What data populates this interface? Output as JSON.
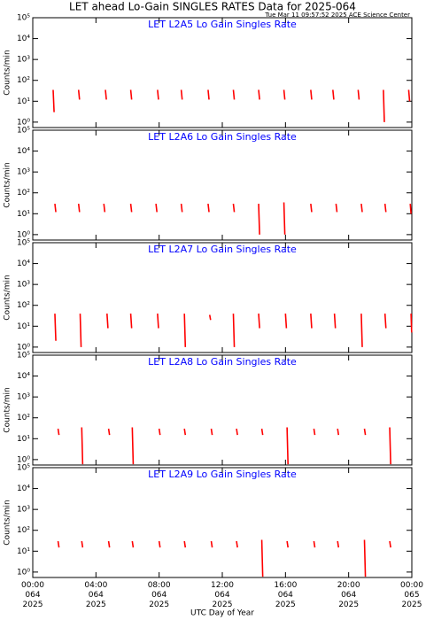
{
  "page": {
    "title": "LET ahead Lo-Gain SINGLES RATES Data for 2025-064",
    "timestamp": "Tue Mar 11 09:57:52 2025 ACE Science Center",
    "x_label": "UTC Day of Year"
  },
  "chart_data": [
    {
      "type": "line",
      "title": "LET L2A5 Lo Gain Singles Rate",
      "ylabel": "Counts/min",
      "log_scale": true,
      "color": "#ff0000",
      "xlim": [
        0,
        24
      ],
      "xticks": [
        0,
        4,
        8,
        12,
        16,
        20,
        24
      ],
      "ylim": [
        0.55,
        100000
      ],
      "yticks": [
        {
          "value": 1,
          "label": "10⁰"
        },
        {
          "value": 10,
          "label": "10¹"
        },
        {
          "value": 100,
          "label": "10²"
        },
        {
          "value": 1000,
          "label": "10³"
        },
        {
          "value": 10000,
          "label": "10⁴"
        },
        {
          "value": 100000,
          "label": "10⁵"
        }
      ],
      "x": [
        1.29,
        1.35,
        1.35,
        2.9,
        2.96,
        2.96,
        4.6,
        4.66,
        4.66,
        6.2,
        6.26,
        6.26,
        7.9,
        7.96,
        7.96,
        9.4,
        9.46,
        9.46,
        11.1,
        11.16,
        11.16,
        12.7,
        12.76,
        12.76,
        14.3,
        14.36,
        14.36,
        15.9,
        15.96,
        15.96,
        17.6,
        17.66,
        17.66,
        19.0,
        19.06,
        19.06,
        20.6,
        20.66,
        20.66,
        22.2,
        22.26,
        22.26,
        23.8,
        23.86,
        23.86
      ],
      "values": [
        35,
        3,
        null,
        35,
        12,
        null,
        35,
        12,
        null,
        35,
        12,
        null,
        35,
        12,
        null,
        35,
        12,
        null,
        35,
        12,
        null,
        35,
        12,
        null,
        35,
        12,
        null,
        35,
        12,
        null,
        35,
        12,
        null,
        35,
        12,
        null,
        35,
        12,
        null,
        35,
        1,
        null,
        35,
        10,
        null
      ]
    },
    {
      "type": "line",
      "title": "LET L2A6 Lo Gain Singles Rate",
      "ylabel": "Counts/min",
      "log_scale": true,
      "color": "#ff0000",
      "xlim": [
        0,
        24
      ],
      "xticks": [
        0,
        4,
        8,
        12,
        16,
        20,
        24
      ],
      "ylim": [
        0.55,
        100000
      ],
      "yticks": [
        {
          "value": 1,
          "label": "10⁰"
        },
        {
          "value": 10,
          "label": "10¹"
        },
        {
          "value": 100,
          "label": "10²"
        },
        {
          "value": 1000,
          "label": "10³"
        },
        {
          "value": 10000,
          "label": "10⁴"
        },
        {
          "value": 100000,
          "label": "10⁵"
        }
      ],
      "x": [
        1.4,
        1.46,
        1.46,
        2.9,
        2.96,
        2.96,
        4.5,
        4.56,
        4.56,
        6.2,
        6.26,
        6.26,
        7.8,
        7.86,
        7.86,
        9.4,
        9.46,
        9.46,
        11.1,
        11.16,
        11.16,
        12.7,
        12.76,
        12.76,
        14.3,
        14.36,
        14.36,
        15.9,
        15.96,
        15.96,
        17.6,
        17.66,
        17.66,
        19.2,
        19.26,
        19.26,
        20.8,
        20.86,
        20.86,
        22.3,
        22.36,
        22.36,
        23.9,
        23.95,
        23.95
      ],
      "values": [
        30,
        12,
        null,
        30,
        12,
        null,
        30,
        12,
        null,
        30,
        12,
        null,
        30,
        12,
        null,
        30,
        12,
        null,
        30,
        12,
        null,
        30,
        12,
        null,
        30,
        1,
        null,
        35,
        1,
        null,
        30,
        12,
        null,
        30,
        12,
        null,
        30,
        12,
        null,
        30,
        12,
        null,
        30,
        10,
        null
      ]
    },
    {
      "type": "line",
      "title": "LET L2A7 Lo Gain Singles Rate",
      "ylabel": "Counts/min",
      "log_scale": true,
      "color": "#ff0000",
      "xlim": [
        0,
        24
      ],
      "xticks": [
        0,
        4,
        8,
        12,
        16,
        20,
        24
      ],
      "ylim": [
        0.55,
        100000
      ],
      "yticks": [
        {
          "value": 1,
          "label": "10⁰"
        },
        {
          "value": 10,
          "label": "10¹"
        },
        {
          "value": 100,
          "label": "10²"
        },
        {
          "value": 1000,
          "label": "10³"
        },
        {
          "value": 10000,
          "label": "10⁴"
        },
        {
          "value": 100000,
          "label": "10⁵"
        }
      ],
      "x": [
        1.4,
        1.46,
        1.46,
        3.0,
        3.06,
        3.06,
        4.7,
        4.76,
        4.76,
        6.2,
        6.26,
        6.26,
        7.9,
        7.96,
        7.96,
        9.6,
        9.66,
        9.66,
        11.2,
        11.26,
        11.26,
        12.7,
        12.76,
        12.76,
        14.3,
        14.36,
        14.36,
        16.0,
        16.06,
        16.06,
        17.6,
        17.66,
        17.66,
        19.1,
        19.16,
        19.16,
        20.8,
        20.86,
        20.86,
        22.3,
        22.36,
        22.36,
        23.95,
        23.99,
        23.99
      ],
      "values": [
        40,
        2,
        null,
        40,
        1,
        null,
        40,
        8,
        null,
        40,
        8,
        null,
        40,
        8,
        null,
        40,
        1,
        null,
        35,
        20,
        null,
        40,
        1,
        null,
        40,
        8,
        null,
        40,
        8,
        null,
        40,
        8,
        null,
        40,
        8,
        null,
        40,
        1,
        null,
        40,
        8,
        null,
        40,
        5,
        null
      ]
    },
    {
      "type": "line",
      "title": "LET L2A8 Lo Gain Singles Rate",
      "ylabel": "Counts/min",
      "log_scale": true,
      "color": "#ff0000",
      "xlim": [
        0,
        24
      ],
      "xticks": [
        0,
        4,
        8,
        12,
        16,
        20,
        24
      ],
      "ylim": [
        0.55,
        100000
      ],
      "yticks": [
        {
          "value": 1,
          "label": "10⁰"
        },
        {
          "value": 10,
          "label": "10¹"
        },
        {
          "value": 100,
          "label": "10²"
        },
        {
          "value": 1000,
          "label": "10³"
        },
        {
          "value": 10000,
          "label": "10⁴"
        },
        {
          "value": 100000,
          "label": "10⁵"
        }
      ],
      "x": [
        1.6,
        1.66,
        1.66,
        3.1,
        3.16,
        3.16,
        4.8,
        4.86,
        4.86,
        6.3,
        6.36,
        6.36,
        8.0,
        8.06,
        8.06,
        9.6,
        9.66,
        9.66,
        11.3,
        11.36,
        11.36,
        12.9,
        12.96,
        12.96,
        14.5,
        14.56,
        14.56,
        16.1,
        16.16,
        16.16,
        17.8,
        17.86,
        17.86,
        19.3,
        19.36,
        19.36,
        21.0,
        21.06,
        21.06,
        22.6,
        22.66,
        22.66
      ],
      "values": [
        30,
        15,
        null,
        35,
        0.6,
        null,
        30,
        15,
        null,
        35,
        0.6,
        null,
        30,
        15,
        null,
        30,
        15,
        null,
        30,
        15,
        null,
        30,
        15,
        null,
        30,
        15,
        null,
        35,
        0.6,
        null,
        30,
        15,
        null,
        30,
        15,
        null,
        30,
        15,
        null,
        35,
        0.6,
        null
      ]
    },
    {
      "type": "line",
      "title": "LET L2A9 Lo Gain Singles Rate",
      "ylabel": "Counts/min",
      "log_scale": true,
      "color": "#ff0000",
      "xlim": [
        0,
        24
      ],
      "xticks": [
        {
          "value": 0,
          "label": "00:00\n064\n2025"
        },
        {
          "value": 4,
          "label": "04:00\n064\n2025"
        },
        {
          "value": 8,
          "label": "08:00\n064\n2025"
        },
        {
          "value": 12,
          "label": "12:00\n064\n2025"
        },
        {
          "value": 16,
          "label": "16:00\n064\n2025"
        },
        {
          "value": 20,
          "label": "20:00\n064\n2025"
        },
        {
          "value": 24,
          "label": "00:00\n065\n2025"
        }
      ],
      "ylim": [
        0.55,
        100000
      ],
      "yticks": [
        {
          "value": 1,
          "label": "10⁰"
        },
        {
          "value": 10,
          "label": "10¹"
        },
        {
          "value": 100,
          "label": "10²"
        },
        {
          "value": 1000,
          "label": "10³"
        },
        {
          "value": 10000,
          "label": "10⁴"
        },
        {
          "value": 100000,
          "label": "10⁵"
        }
      ],
      "x": [
        1.6,
        1.66,
        1.66,
        3.1,
        3.16,
        3.16,
        4.8,
        4.86,
        4.86,
        6.3,
        6.36,
        6.36,
        8.0,
        8.06,
        8.06,
        9.6,
        9.66,
        9.66,
        11.3,
        11.36,
        11.36,
        12.9,
        12.96,
        12.96,
        14.5,
        14.56,
        14.56,
        16.1,
        16.16,
        16.16,
        17.8,
        17.86,
        17.86,
        19.3,
        19.36,
        19.36,
        21.0,
        21.06,
        21.06,
        22.6,
        22.66,
        22.66
      ],
      "values": [
        30,
        15,
        null,
        30,
        15,
        null,
        30,
        15,
        null,
        30,
        15,
        null,
        30,
        15,
        null,
        30,
        15,
        null,
        30,
        15,
        null,
        30,
        15,
        null,
        35,
        0.6,
        null,
        30,
        15,
        null,
        30,
        15,
        null,
        30,
        15,
        null,
        35,
        0.6,
        null,
        30,
        15,
        null
      ]
    }
  ]
}
